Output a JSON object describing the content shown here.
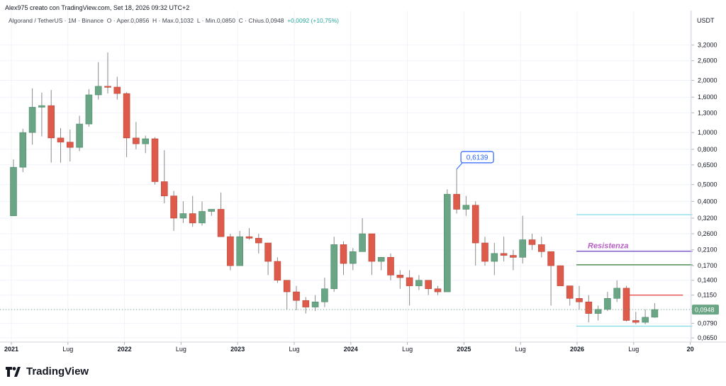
{
  "header": {
    "created_by": "Alex975 creato con TradingView.com, Set 18, 2026 09:32 UTC+2"
  },
  "legend": {
    "symbol": "Algorand / TetherUS · 1M · Binance",
    "open": "O · Aper.0,0856",
    "high": "H · Max.0,1032",
    "low": "L · Min.0,0850",
    "close": "C · Chius.0,0948",
    "change": "+0,0092 (+10,75%)"
  },
  "brand": {
    "name": "TradingView"
  },
  "chart_data": {
    "type": "candlestick",
    "currency_label": "USDT",
    "y_scale": "log",
    "ylim": [
      0.0615,
      4.0
    ],
    "y_ticks": [
      "0,0650",
      "0,0790",
      "0,0950",
      "0,1150",
      "0,1400",
      "0,1700",
      "0,2100",
      "0,2600",
      "0,3200",
      "0,4000",
      "0,5000",
      "0,6500",
      "0,8000",
      "1,0000",
      "1,3000",
      "1,6000",
      "2,0000",
      "2,6000",
      "3,2000"
    ],
    "x_ticks": [
      {
        "label": "2021",
        "i": 0
      },
      {
        "label": "Lug",
        "i": 6
      },
      {
        "label": "2022",
        "i": 12
      },
      {
        "label": "Lug",
        "i": 18
      },
      {
        "label": "2023",
        "i": 24
      },
      {
        "label": "Lug",
        "i": 30
      },
      {
        "label": "2024",
        "i": 36
      },
      {
        "label": "Lug",
        "i": 42
      },
      {
        "label": "2025",
        "i": 48
      },
      {
        "label": "Lug",
        "i": 54
      },
      {
        "label": "2026",
        "i": 60
      },
      {
        "label": "Lug",
        "i": 66
      },
      {
        "label": "20",
        "i": 72
      }
    ],
    "first_month": "2021-01",
    "candles": [
      [
        0.33,
        0.7,
        0.33,
        0.63
      ],
      [
        0.63,
        1.05,
        0.59,
        1.0
      ],
      [
        1.0,
        1.8,
        0.85,
        1.4
      ],
      [
        1.4,
        1.7,
        0.95,
        1.43
      ],
      [
        1.43,
        1.76,
        0.67,
        0.93
      ],
      [
        0.93,
        1.06,
        0.67,
        0.88
      ],
      [
        0.88,
        1.04,
        0.68,
        0.82
      ],
      [
        0.82,
        1.25,
        0.78,
        1.12
      ],
      [
        1.12,
        1.78,
        1.08,
        1.65
      ],
      [
        1.65,
        2.55,
        1.55,
        1.85
      ],
      [
        1.85,
        2.9,
        1.68,
        1.83
      ],
      [
        1.83,
        2.1,
        1.55,
        1.68
      ],
      [
        1.68,
        1.71,
        0.72,
        0.93
      ],
      [
        0.93,
        1.15,
        0.8,
        0.86
      ],
      [
        0.86,
        0.96,
        0.76,
        0.92
      ],
      [
        0.92,
        0.94,
        0.5,
        0.52
      ],
      [
        0.52,
        0.79,
        0.39,
        0.43
      ],
      [
        0.43,
        0.46,
        0.27,
        0.32
      ],
      [
        0.32,
        0.4,
        0.3,
        0.34
      ],
      [
        0.34,
        0.43,
        0.285,
        0.3
      ],
      [
        0.3,
        0.4,
        0.29,
        0.35
      ],
      [
        0.35,
        0.36,
        0.33,
        0.36
      ],
      [
        0.36,
        0.45,
        0.25,
        0.25
      ],
      [
        0.25,
        0.26,
        0.16,
        0.17
      ],
      [
        0.17,
        0.27,
        0.17,
        0.25
      ],
      [
        0.25,
        0.28,
        0.24,
        0.245
      ],
      [
        0.245,
        0.26,
        0.2,
        0.23
      ],
      [
        0.23,
        0.23,
        0.15,
        0.18
      ],
      [
        0.18,
        0.19,
        0.135,
        0.14
      ],
      [
        0.14,
        0.14,
        0.095,
        0.12
      ],
      [
        0.12,
        0.13,
        0.094,
        0.107
      ],
      [
        0.107,
        0.112,
        0.09,
        0.098
      ],
      [
        0.098,
        0.115,
        0.093,
        0.105
      ],
      [
        0.105,
        0.145,
        0.098,
        0.125
      ],
      [
        0.125,
        0.25,
        0.12,
        0.225
      ],
      [
        0.225,
        0.235,
        0.15,
        0.175
      ],
      [
        0.175,
        0.215,
        0.16,
        0.205
      ],
      [
        0.205,
        0.32,
        0.21,
        0.26
      ],
      [
        0.26,
        0.26,
        0.15,
        0.18
      ],
      [
        0.18,
        0.19,
        0.16,
        0.19
      ],
      [
        0.19,
        0.2,
        0.14,
        0.15
      ],
      [
        0.15,
        0.16,
        0.125,
        0.145
      ],
      [
        0.145,
        0.16,
        0.1,
        0.13
      ],
      [
        0.13,
        0.15,
        0.123,
        0.14
      ],
      [
        0.14,
        0.14,
        0.115,
        0.125
      ],
      [
        0.125,
        0.13,
        0.115,
        0.12
      ],
      [
        0.12,
        0.47,
        0.12,
        0.44
      ],
      [
        0.44,
        0.6139,
        0.34,
        0.36
      ],
      [
        0.36,
        0.43,
        0.33,
        0.38
      ],
      [
        0.38,
        0.4,
        0.17,
        0.23
      ],
      [
        0.23,
        0.25,
        0.17,
        0.18
      ],
      [
        0.18,
        0.23,
        0.15,
        0.2
      ],
      [
        0.2,
        0.25,
        0.18,
        0.195
      ],
      [
        0.195,
        0.21,
        0.16,
        0.19
      ],
      [
        0.19,
        0.33,
        0.175,
        0.24
      ],
      [
        0.24,
        0.26,
        0.21,
        0.225
      ],
      [
        0.225,
        0.25,
        0.19,
        0.205
      ],
      [
        0.205,
        0.2,
        0.1,
        0.17
      ],
      [
        0.17,
        0.17,
        0.13,
        0.13
      ],
      [
        0.13,
        0.13,
        0.1,
        0.11
      ],
      [
        0.11,
        0.13,
        0.095,
        0.105
      ],
      [
        0.105,
        0.115,
        0.08,
        0.09
      ],
      [
        0.09,
        0.1,
        0.082,
        0.095
      ],
      [
        0.095,
        0.12,
        0.093,
        0.11
      ],
      [
        0.11,
        0.14,
        0.105,
        0.126
      ],
      [
        0.126,
        0.13,
        0.081,
        0.082
      ],
      [
        0.082,
        0.092,
        0.078,
        0.08
      ],
      [
        0.08,
        0.095,
        0.078,
        0.0856
      ],
      [
        0.0856,
        0.1032,
        0.085,
        0.0948
      ]
    ],
    "current_price": {
      "label": "0,0948",
      "value": 0.0948
    },
    "peak_callout": {
      "label": "0,6139",
      "i": 47,
      "value": 0.6139
    },
    "horizontal_levels": [
      {
        "value": 0.335,
        "color": "#7fdbe6",
        "from_i": 60,
        "to_i": 72
      },
      {
        "value": 0.206,
        "color": "#6a3fc1",
        "from_i": 60,
        "to_i": 72,
        "label": "Resistenza",
        "label_color": "#b85fc6"
      },
      {
        "value": 0.172,
        "color": "#2e7d32",
        "from_i": 60,
        "to_i": 72
      },
      {
        "value": 0.115,
        "color": "#e53935",
        "from_i": 65,
        "to_i": 71
      },
      {
        "value": 0.076,
        "color": "#7fdbe6",
        "from_i": 60,
        "to_i": 72
      }
    ],
    "colors": {
      "up": "#6aa585",
      "down": "#de5a4a",
      "wick": "#8a8a8a",
      "grid": "#f0f3fa",
      "axis_text": "#131722",
      "price_tag": "#6aa585",
      "callout": "#2962ff"
    }
  }
}
